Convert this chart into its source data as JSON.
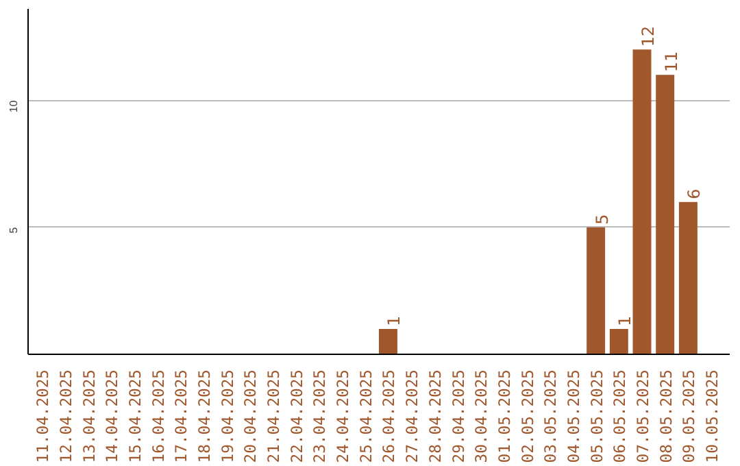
{
  "chart_data": {
    "type": "bar",
    "categories": [
      "11.04.2025",
      "12.04.2025",
      "13.04.2025",
      "14.04.2025",
      "15.04.2025",
      "16.04.2025",
      "17.04.2025",
      "18.04.2025",
      "19.04.2025",
      "20.04.2025",
      "21.04.2025",
      "22.04.2025",
      "23.04.2025",
      "24.04.2025",
      "25.04.2025",
      "26.04.2025",
      "27.04.2025",
      "28.04.2025",
      "29.04.2025",
      "30.04.2025",
      "01.05.2025",
      "02.05.2025",
      "03.05.2025",
      "04.05.2025",
      "05.05.2025",
      "06.05.2025",
      "07.05.2025",
      "08.05.2025",
      "09.05.2025",
      "10.05.2025"
    ],
    "values": [
      0,
      0,
      0,
      0,
      0,
      0,
      0,
      0,
      0,
      0,
      0,
      0,
      0,
      0,
      0,
      1,
      0,
      0,
      0,
      0,
      0,
      0,
      0,
      0,
      5,
      1,
      12,
      11,
      6,
      0
    ],
    "value_labels": [
      null,
      null,
      null,
      null,
      null,
      null,
      null,
      null,
      null,
      null,
      null,
      null,
      null,
      null,
      null,
      "1",
      null,
      null,
      null,
      null,
      null,
      null,
      null,
      null,
      "5",
      "1",
      "12",
      "11",
      "6",
      null
    ],
    "color": "#a0572b",
    "ylim": [
      0,
      13.6
    ],
    "yticks": [
      5,
      10
    ],
    "grid": "y"
  }
}
